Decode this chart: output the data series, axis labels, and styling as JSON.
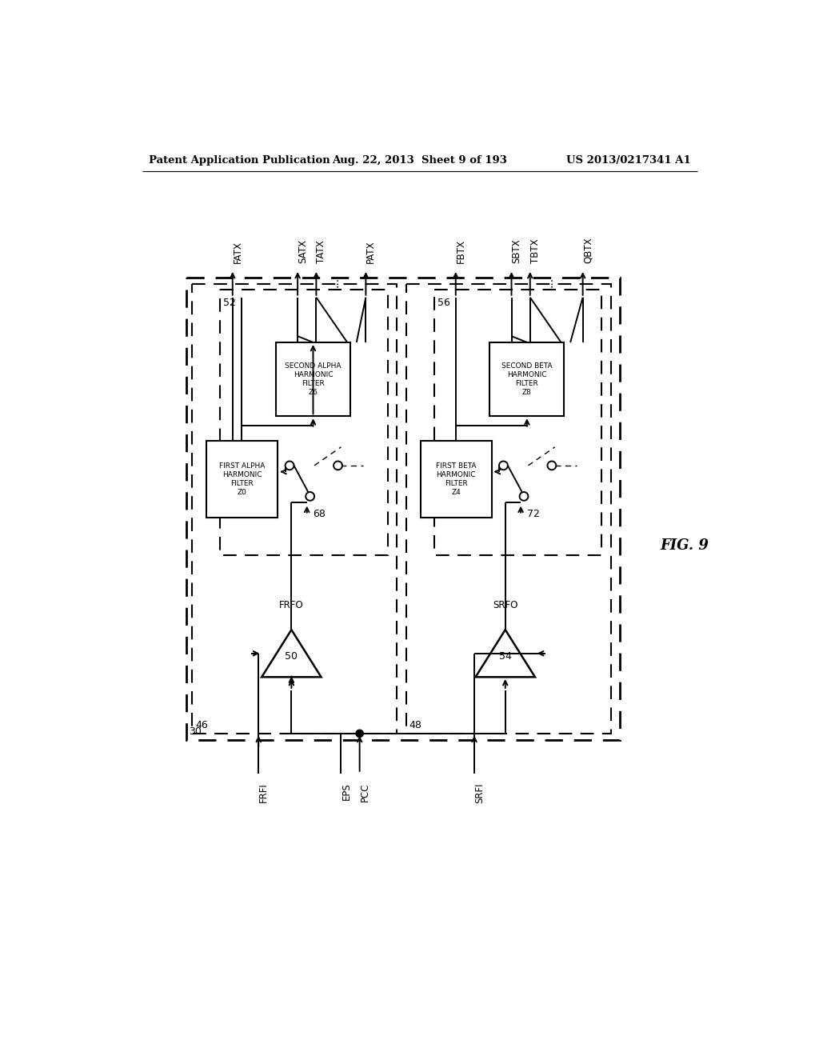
{
  "header_left": "Patent Application Publication",
  "header_mid": "Aug. 22, 2013  Sheet 9 of 193",
  "header_right": "US 2013/0217341 A1",
  "fig_label": "FIG. 9",
  "background": "#ffffff",
  "line_color": "#000000",
  "outer_box_label": "30",
  "left_section_label": "46",
  "right_section_label": "48",
  "left_amp_label": "50",
  "right_amp_label": "54",
  "left_amp_signal": "FRFO",
  "right_amp_signal": "SRFO",
  "left_subsection_label": "52",
  "right_subsection_label": "56",
  "switch_left_label": "68",
  "switch_right_label": "72",
  "first_alpha_filter": "FIRST ALPHA\nHARMONIC\nFILTER\nZ0",
  "second_alpha_filter": "SECOND ALPHA\nHARMONIC\nFILTER\nZ6",
  "first_beta_filter": "FIRST BETA\nHARMONIC\nFILTER\nZ4",
  "second_beta_filter": "SECOND BETA\nHARMONIC\nFILTER\nZ8",
  "output_signals_left": [
    "FATX",
    "SATX",
    "TATX",
    "...",
    "PATX"
  ],
  "output_signals_right": [
    "FBTX",
    "SBTX",
    "TBTX",
    "...",
    "QBTX"
  ],
  "input_signals_labels": [
    "FRFI",
    "EPS",
    "PCC",
    "SRFI"
  ]
}
